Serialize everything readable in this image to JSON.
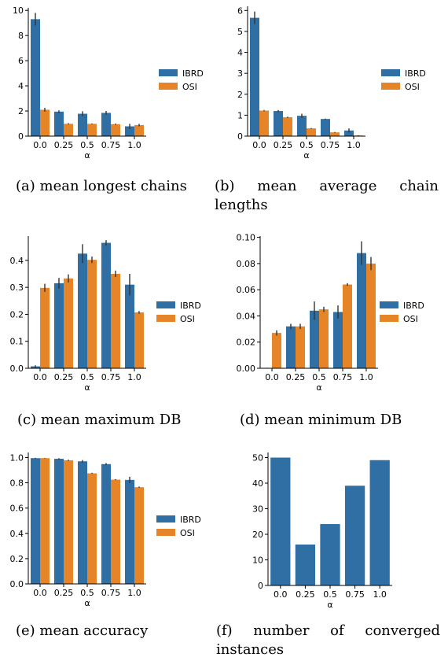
{
  "colors": {
    "series0": "#2f6fa4",
    "series1": "#e58527",
    "error": "#333333"
  },
  "chart_data": [
    {
      "type": "bar",
      "categories": [
        "0.0",
        "0.25",
        "0.5",
        "0.75",
        "1.0"
      ],
      "series": [
        {
          "name": "IBRD",
          "values": [
            9.3,
            1.95,
            1.78,
            1.85,
            0.78
          ],
          "err": [
            0.5,
            0.1,
            0.2,
            0.15,
            0.2
          ]
        },
        {
          "name": "OSI",
          "values": [
            2.1,
            0.98,
            0.98,
            0.95,
            0.88
          ],
          "err": [
            0.15,
            0.05,
            0.03,
            0.05,
            0.1
          ]
        }
      ],
      "xlabel": "α",
      "ylabel": "",
      "ylim": [
        0,
        10.2
      ],
      "yticks": [
        0,
        2,
        4,
        6,
        8,
        10
      ],
      "ytick_labels": [
        "0",
        "2",
        "4",
        "6",
        "8",
        "10"
      ],
      "legend": "right",
      "caption": "(a) mean longest chains"
    },
    {
      "type": "bar",
      "categories": [
        "0.0",
        "0.25",
        "0.5",
        "0.75",
        "1.0"
      ],
      "series": [
        {
          "name": "IBRD",
          "values": [
            5.65,
            1.2,
            0.97,
            0.82,
            0.27
          ],
          "err": [
            0.3,
            0.05,
            0.1,
            0.02,
            0.1
          ]
        },
        {
          "name": "OSI",
          "values": [
            1.22,
            0.9,
            0.37,
            0.18,
            0.03
          ],
          "err": [
            0.03,
            0.03,
            0.02,
            0.02,
            0.01
          ]
        }
      ],
      "xlabel": "α",
      "ylabel": "",
      "ylim": [
        0,
        6.2
      ],
      "yticks": [
        0,
        1,
        2,
        3,
        4,
        5,
        6
      ],
      "ytick_labels": [
        "0",
        "1",
        "2",
        "3",
        "4",
        "5",
        "6"
      ],
      "legend": "right",
      "caption": "(b) mean average chain lengths"
    },
    {
      "type": "bar",
      "categories": [
        "0.0",
        "0.25",
        "0.5",
        "0.75",
        "1.0"
      ],
      "series": [
        {
          "name": "IBRD",
          "values": [
            0.007,
            0.315,
            0.425,
            0.465,
            0.31
          ],
          "err": [
            0.004,
            0.02,
            0.035,
            0.01,
            0.04
          ]
        },
        {
          "name": "OSI",
          "values": [
            0.298,
            0.333,
            0.402,
            0.35,
            0.207
          ],
          "err": [
            0.015,
            0.015,
            0.012,
            0.012,
            0.005
          ]
        }
      ],
      "xlabel": "α",
      "ylabel": "",
      "ylim": [
        0,
        0.49
      ],
      "yticks": [
        0,
        0.1,
        0.2,
        0.3,
        0.4
      ],
      "ytick_labels": [
        "0.0",
        "0.1",
        "0.2",
        "0.3",
        "0.4"
      ],
      "legend": "right",
      "caption": "(c) mean maximum DB"
    },
    {
      "type": "bar",
      "categories": [
        "0.0",
        "0.25",
        "0.5",
        "0.75",
        "1.0"
      ],
      "series": [
        {
          "name": "IBRD",
          "values": [
            0.0002,
            0.032,
            0.044,
            0.043,
            0.088
          ],
          "err": [
            0.0002,
            0.002,
            0.007,
            0.005,
            0.009
          ]
        },
        {
          "name": "OSI",
          "values": [
            0.027,
            0.032,
            0.045,
            0.064,
            0.08
          ],
          "err": [
            0.002,
            0.002,
            0.002,
            0.001,
            0.005
          ]
        }
      ],
      "xlabel": "α",
      "ylabel": "",
      "ylim": [
        0,
        0.101
      ],
      "yticks": [
        0,
        0.02,
        0.04,
        0.06,
        0.08,
        0.1
      ],
      "ytick_labels": [
        "0.00",
        "0.02",
        "0.04",
        "0.06",
        "0.08",
        "0.10"
      ],
      "legend": "right",
      "caption": "(d) mean minimum DB"
    },
    {
      "type": "bar",
      "categories": [
        "0.0",
        "0.25",
        "0.5",
        "0.75",
        "1.0"
      ],
      "series": [
        {
          "name": "IBRD",
          "values": [
            0.995,
            0.99,
            0.97,
            0.948,
            0.823
          ],
          "err": [
            0.003,
            0.005,
            0.01,
            0.008,
            0.025
          ]
        },
        {
          "name": "OSI",
          "values": [
            0.995,
            0.978,
            0.875,
            0.825,
            0.765
          ],
          "err": [
            0.002,
            0.005,
            0.004,
            0.004,
            0.005
          ]
        }
      ],
      "xlabel": "α",
      "ylabel": "",
      "ylim": [
        0,
        1.04
      ],
      "yticks": [
        0,
        0.2,
        0.4,
        0.6,
        0.8,
        1.0
      ],
      "ytick_labels": [
        "0.0",
        "0.2",
        "0.4",
        "0.6",
        "0.8",
        "1.0"
      ],
      "legend": "right",
      "caption": "(e) mean accuracy"
    },
    {
      "type": "bar",
      "categories": [
        "0.0",
        "0.25",
        "0.5",
        "0.75",
        "1.0"
      ],
      "series": [
        {
          "values": [
            50,
            16,
            24,
            39,
            49
          ]
        }
      ],
      "xlabel": "α",
      "ylabel": "",
      "ylim": [
        0,
        52
      ],
      "yticks": [
        0,
        10,
        20,
        30,
        40,
        50
      ],
      "ytick_labels": [
        "0",
        "10",
        "20",
        "30",
        "40",
        "50"
      ],
      "caption": "(f) number of converged instances"
    }
  ]
}
